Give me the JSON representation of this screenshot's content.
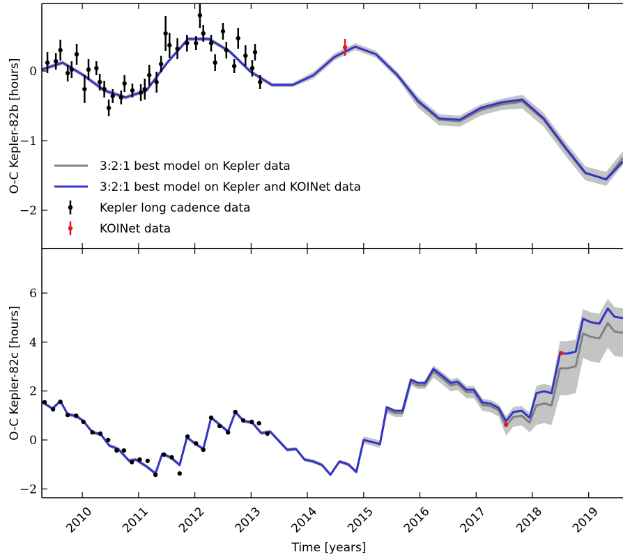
{
  "chart_data": [
    {
      "type": "line",
      "ylabel": "O-C Kepler-82b [hours]",
      "xlim": [
        2009.28,
        2019.61
      ],
      "ylim": [
        -2.55,
        0.97
      ],
      "xticks": [
        2010,
        2011,
        2012,
        2013,
        2014,
        2015,
        2016,
        2017,
        2018,
        2019
      ],
      "show_xticklabels": false,
      "yticks": [
        {
          "value": -2,
          "label": "−2"
        },
        {
          "value": -1,
          "label": "−1"
        },
        0
      ],
      "legend": "lower left",
      "x": [
        2009.28,
        2009.65,
        2010.02,
        2010.39,
        2010.77,
        2011.14,
        2011.51,
        2011.88,
        2012.25,
        2012.62,
        2012.99,
        2013.37,
        2013.74,
        2014.11,
        2014.48,
        2014.85,
        2015.22,
        2015.6,
        2015.97,
        2016.34,
        2016.71,
        2017.08,
        2017.45,
        2017.82,
        2018.2,
        2018.57,
        2018.94,
        2019.31,
        2019.61
      ],
      "series": [
        {
          "name": "3:2:1 best model on Kepler data",
          "style": "line",
          "color": "#808080",
          "band_color": "#c4c4c4",
          "values": [
            0.02,
            0.12,
            -0.06,
            -0.28,
            -0.38,
            -0.28,
            0.12,
            0.46,
            0.46,
            0.28,
            -0.01,
            -0.2,
            -0.2,
            -0.06,
            0.2,
            0.35,
            0.24,
            -0.06,
            -0.45,
            -0.7,
            -0.72,
            -0.56,
            -0.48,
            -0.44,
            -0.7,
            -1.1,
            -1.47,
            -1.55,
            -1.25
          ],
          "upper": [
            0.05,
            0.15,
            -0.03,
            -0.25,
            -0.35,
            -0.25,
            0.15,
            0.49,
            0.49,
            0.31,
            0.02,
            -0.17,
            -0.17,
            -0.01,
            0.25,
            0.4,
            0.29,
            -0.01,
            -0.37,
            -0.62,
            -0.64,
            -0.48,
            -0.4,
            -0.34,
            -0.6,
            -1.0,
            -1.37,
            -1.45,
            -1.15
          ],
          "lower": [
            -0.01,
            0.09,
            -0.09,
            -0.31,
            -0.41,
            -0.31,
            0.09,
            0.43,
            0.43,
            0.25,
            -0.04,
            -0.23,
            -0.23,
            -0.11,
            0.15,
            0.3,
            0.19,
            -0.11,
            -0.53,
            -0.78,
            -0.8,
            -0.64,
            -0.56,
            -0.54,
            -0.8,
            -1.2,
            -1.57,
            -1.65,
            -1.35
          ]
        },
        {
          "name": "3:2:1 best model on Kepler and KOINet data",
          "style": "line",
          "color": "#3434c8",
          "values": [
            0.02,
            0.12,
            -0.06,
            -0.28,
            -0.38,
            -0.28,
            0.12,
            0.46,
            0.46,
            0.28,
            -0.01,
            -0.2,
            -0.2,
            -0.06,
            0.2,
            0.35,
            0.24,
            -0.06,
            -0.43,
            -0.68,
            -0.7,
            -0.53,
            -0.45,
            -0.41,
            -0.68,
            -1.08,
            -1.46,
            -1.56,
            -1.3
          ]
        },
        {
          "name": "Kepler long cadence data",
          "style": "errorbar",
          "color": "#000000",
          "x": [
            2009.38,
            2009.53,
            2009.61,
            2009.74,
            2009.81,
            2009.9,
            2010.04,
            2010.11,
            2010.25,
            2010.31,
            2010.39,
            2010.47,
            2010.54,
            2010.69,
            2010.75,
            2010.89,
            2011.04,
            2011.11,
            2011.19,
            2011.32,
            2011.4,
            2011.48,
            2011.55,
            2011.69,
            2011.86,
            2012.02,
            2012.09,
            2012.15,
            2012.29,
            2012.36,
            2012.5,
            2012.56,
            2012.7,
            2012.77,
            2012.9,
            2013.02,
            2013.07,
            2013.16
          ],
          "values": [
            0.12,
            0.14,
            0.3,
            -0.03,
            0.02,
            0.24,
            -0.26,
            0.02,
            0.04,
            -0.16,
            -0.26,
            -0.53,
            -0.36,
            -0.38,
            -0.18,
            -0.28,
            -0.31,
            -0.26,
            -0.06,
            -0.16,
            0.1,
            0.54,
            0.37,
            0.32,
            0.4,
            0.4,
            0.8,
            0.54,
            0.4,
            0.12,
            0.57,
            0.3,
            0.07,
            0.47,
            0.22,
            0.04,
            0.27,
            -0.16
          ],
          "errors": [
            0.15,
            0.12,
            0.15,
            0.12,
            0.12,
            0.15,
            0.2,
            0.15,
            0.1,
            0.12,
            0.12,
            0.12,
            0.1,
            0.1,
            0.12,
            0.1,
            0.12,
            0.15,
            0.15,
            0.15,
            0.12,
            0.25,
            0.18,
            0.15,
            0.12,
            0.1,
            0.18,
            0.12,
            0.12,
            0.12,
            0.12,
            0.12,
            0.1,
            0.15,
            0.15,
            0.12,
            0.12,
            0.1
          ]
        },
        {
          "name": "KOINet data",
          "style": "errorbar",
          "color": "#e8141c",
          "x": [
            2014.67
          ],
          "values": [
            0.34
          ],
          "errors": [
            0.12
          ]
        }
      ]
    },
    {
      "type": "line",
      "ylabel": "O-C Kepler-82c [hours]",
      "xlabel": "Time [years]",
      "xlim": [
        2009.28,
        2019.61
      ],
      "ylim": [
        -2.36,
        7.82
      ],
      "xticks": [
        2010,
        2011,
        2012,
        2013,
        2014,
        2015,
        2016,
        2017,
        2018,
        2019
      ],
      "show_xticklabels": true,
      "yticks": [
        {
          "value": -2,
          "label": "−2"
        },
        0,
        2,
        4,
        6
      ],
      "x": [
        2009.28,
        2009.47,
        2009.61,
        2009.74,
        2009.9,
        2010.02,
        2010.18,
        2010.33,
        2010.48,
        2010.64,
        2010.83,
        2010.95,
        2011.14,
        2011.3,
        2011.42,
        2011.57,
        2011.73,
        2011.86,
        2012.0,
        2012.15,
        2012.29,
        2012.44,
        2012.59,
        2012.72,
        2012.87,
        2013.02,
        2013.18,
        2013.34,
        2013.49,
        2013.64,
        2013.8,
        2013.95,
        2014.11,
        2014.26,
        2014.41,
        2014.57,
        2014.73,
        2014.87,
        2015.0,
        2015.16,
        2015.29,
        2015.41,
        2015.56,
        2015.69,
        2015.84,
        2015.97,
        2016.09,
        2016.24,
        2016.4,
        2016.55,
        2016.67,
        2016.83,
        2016.96,
        2017.11,
        2017.26,
        2017.4,
        2017.53,
        2017.66,
        2017.81,
        2017.95,
        2018.07,
        2018.21,
        2018.34,
        2018.49,
        2018.63,
        2018.77,
        2018.9,
        2019.04,
        2019.19,
        2019.34,
        2019.46,
        2019.61
      ],
      "series": [
        {
          "style": "line",
          "color": "#808080",
          "band_color": "#c4c4c4",
          "values": [
            1.56,
            1.28,
            1.59,
            1.05,
            0.97,
            0.77,
            0.31,
            0.23,
            -0.23,
            -0.37,
            -0.85,
            -0.8,
            -1.08,
            -1.37,
            -0.57,
            -0.71,
            -1.02,
            0.11,
            -0.14,
            -0.37,
            0.91,
            0.63,
            0.34,
            1.14,
            0.77,
            0.71,
            0.28,
            0.34,
            -0.03,
            -0.4,
            -0.37,
            -0.8,
            -0.88,
            -1.02,
            -1.42,
            -0.88,
            -1.0,
            -1.31,
            0,
            -0.09,
            -0.17,
            1.24,
            1.09,
            1.09,
            2.37,
            2.23,
            2.23,
            2.8,
            2.52,
            2.23,
            2.29,
            1.95,
            1.95,
            1.44,
            1.38,
            1.21,
            0.57,
            0.94,
            0.99,
            0.71,
            1.41,
            1.49,
            1.41,
            2.93,
            2.93,
            3.01,
            4.35,
            4.21,
            4.15,
            4.77,
            4.43,
            4.38
          ],
          "upper": [
            1.64,
            1.36,
            1.67,
            1.13,
            1.05,
            0.85,
            0.39,
            0.31,
            -0.15,
            -0.29,
            -0.77,
            -0.72,
            -1.0,
            -1.29,
            -0.49,
            -0.63,
            -0.94,
            0.19,
            -0.06,
            -0.29,
            0.99,
            0.71,
            0.42,
            1.22,
            0.85,
            0.79,
            0.36,
            0.42,
            0.05,
            -0.32,
            -0.29,
            -0.72,
            -0.8,
            -0.94,
            -1.34,
            -0.8,
            -0.92,
            -1.23,
            0.15,
            0.06,
            -0.02,
            1.39,
            1.24,
            1.24,
            2.52,
            2.38,
            2.38,
            3.05,
            2.77,
            2.48,
            2.54,
            2.2,
            2.2,
            1.69,
            1.63,
            1.46,
            0.97,
            1.34,
            1.39,
            1.11,
            2.21,
            2.29,
            2.21,
            4.03,
            4.03,
            4.11,
            5.35,
            5.21,
            5.15,
            5.77,
            5.43,
            5.38
          ],
          "lower": [
            1.48,
            1.2,
            1.51,
            0.97,
            0.89,
            0.69,
            0.23,
            0.15,
            -0.31,
            -0.45,
            -0.93,
            -0.88,
            -1.16,
            -1.45,
            -0.65,
            -0.79,
            -1.1,
            0.03,
            -0.22,
            -0.45,
            0.83,
            0.55,
            0.26,
            1.06,
            0.69,
            0.63,
            0.2,
            0.26,
            -0.11,
            -0.48,
            -0.45,
            -0.88,
            -0.96,
            -1.1,
            -1.5,
            -0.96,
            -1.08,
            -1.39,
            -0.15,
            -0.24,
            -0.32,
            1.09,
            0.94,
            0.94,
            2.22,
            2.08,
            2.08,
            2.55,
            2.27,
            1.98,
            2.04,
            1.7,
            1.7,
            1.19,
            1.13,
            0.96,
            0.17,
            0.54,
            0.59,
            0.31,
            0.61,
            0.69,
            0.61,
            1.83,
            1.83,
            1.91,
            3.35,
            3.21,
            3.15,
            3.77,
            3.43,
            3.38
          ]
        },
        {
          "style": "line",
          "color": "#3434c8",
          "values": [
            1.56,
            1.28,
            1.59,
            1.05,
            0.97,
            0.77,
            0.31,
            0.23,
            -0.23,
            -0.37,
            -0.85,
            -0.8,
            -1.08,
            -1.37,
            -0.57,
            -0.71,
            -1.02,
            0.11,
            -0.14,
            -0.37,
            0.91,
            0.63,
            0.34,
            1.14,
            0.77,
            0.71,
            0.28,
            0.34,
            -0.03,
            -0.4,
            -0.37,
            -0.8,
            -0.88,
            -1.02,
            -1.42,
            -0.88,
            -1.0,
            -1.31,
            0,
            -0.09,
            -0.17,
            1.34,
            1.19,
            1.19,
            2.47,
            2.33,
            2.33,
            2.9,
            2.62,
            2.33,
            2.39,
            2.05,
            2.05,
            1.54,
            1.48,
            1.31,
            0.77,
            1.14,
            1.19,
            0.91,
            1.91,
            1.99,
            1.91,
            3.53,
            3.53,
            3.61,
            4.95,
            4.81,
            4.75,
            5.37,
            5.03,
            4.98
          ]
        },
        {
          "style": "errorbar",
          "color": "#000000",
          "x": [
            2009.33,
            2009.48,
            2009.61,
            2009.74,
            2009.89,
            2010.02,
            2010.18,
            2010.32,
            2010.46,
            2010.61,
            2010.74,
            2010.88,
            2011.02,
            2011.16,
            2011.3,
            2011.45,
            2011.59,
            2011.73,
            2011.87,
            2012.02,
            2012.15,
            2012.29,
            2012.44,
            2012.59,
            2012.72,
            2012.86,
            2013.01,
            2013.14,
            2013.29
          ],
          "values": [
            1.54,
            1.25,
            1.56,
            1.02,
            0.99,
            0.74,
            0.31,
            0.26,
            0,
            -0.43,
            -0.43,
            -0.91,
            -0.8,
            -0.85,
            -1.42,
            -0.6,
            -0.71,
            -1.37,
            0.14,
            -0.14,
            -0.4,
            0.91,
            0.57,
            0.31,
            1.14,
            0.8,
            0.74,
            0.68,
            0.26
          ]
        },
        {
          "style": "errorbar",
          "color": "#e8141c",
          "x": [
            2017.53,
            2018.51
          ],
          "values": [
            0.63,
            3.55
          ]
        }
      ]
    }
  ]
}
